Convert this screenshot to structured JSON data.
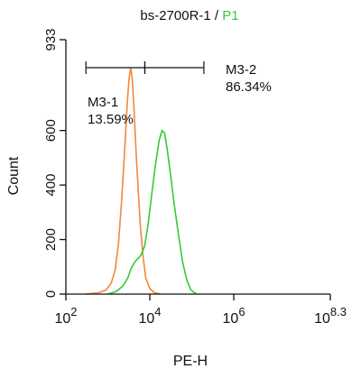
{
  "chart_data": {
    "type": "line",
    "title_parts": [
      {
        "text": "bs-2700R-1 / ",
        "color": "#111111"
      },
      {
        "text": "P1",
        "color": "#33cc33"
      }
    ],
    "xlabel": "PE-H",
    "ylabel": "Count",
    "x_scale": "log",
    "xlim": [
      100,
      199526231
    ],
    "ylim": [
      0,
      933
    ],
    "x_ticks": [
      {
        "value": 100,
        "base": "10",
        "exp": "2"
      },
      {
        "value": 10000,
        "base": "10",
        "exp": "4"
      },
      {
        "value": 1000000,
        "base": "10",
        "exp": "6"
      },
      {
        "value": 199526231,
        "base": "10",
        "exp": "8.3"
      }
    ],
    "y_ticks": [
      {
        "value": 0,
        "label": "0"
      },
      {
        "value": 200,
        "label": "200"
      },
      {
        "value": 400,
        "label": "400"
      },
      {
        "value": 600,
        "label": "600"
      },
      {
        "value": 933,
        "label": "933"
      }
    ],
    "grid": false,
    "series": [
      {
        "color": "#f0883a",
        "points": [
          [
            300,
            0
          ],
          [
            600,
            5
          ],
          [
            900,
            15
          ],
          [
            1200,
            40
          ],
          [
            1500,
            90
          ],
          [
            1800,
            190
          ],
          [
            2100,
            330
          ],
          [
            2500,
            520
          ],
          [
            2900,
            700
          ],
          [
            3200,
            790
          ],
          [
            3500,
            830
          ],
          [
            3800,
            790
          ],
          [
            4200,
            680
          ],
          [
            4700,
            520
          ],
          [
            5300,
            380
          ],
          [
            6000,
            240
          ],
          [
            7000,
            130
          ],
          [
            8000,
            60
          ],
          [
            10000,
            20
          ],
          [
            13000,
            5
          ],
          [
            18000,
            0
          ]
        ]
      },
      {
        "color": "#33cc33",
        "points": [
          [
            1000,
            0
          ],
          [
            1600,
            10
          ],
          [
            2300,
            30
          ],
          [
            3000,
            60
          ],
          [
            3600,
            95
          ],
          [
            4500,
            120
          ],
          [
            6000,
            140
          ],
          [
            7500,
            175
          ],
          [
            9000,
            250
          ],
          [
            11000,
            360
          ],
          [
            13500,
            470
          ],
          [
            16500,
            560
          ],
          [
            19500,
            600
          ],
          [
            22500,
            590
          ],
          [
            26000,
            530
          ],
          [
            31000,
            440
          ],
          [
            38000,
            330
          ],
          [
            48000,
            220
          ],
          [
            60000,
            120
          ],
          [
            75000,
            55
          ],
          [
            95000,
            15
          ],
          [
            130000,
            0
          ]
        ]
      }
    ],
    "gates": [
      {
        "name": "M3-1",
        "percent": "13.59%",
        "x_start": 300,
        "x_end": 7600
      },
      {
        "name": "M3-2",
        "percent": "86.34%",
        "x_start": 7600,
        "x_end": 194000
      }
    ]
  }
}
